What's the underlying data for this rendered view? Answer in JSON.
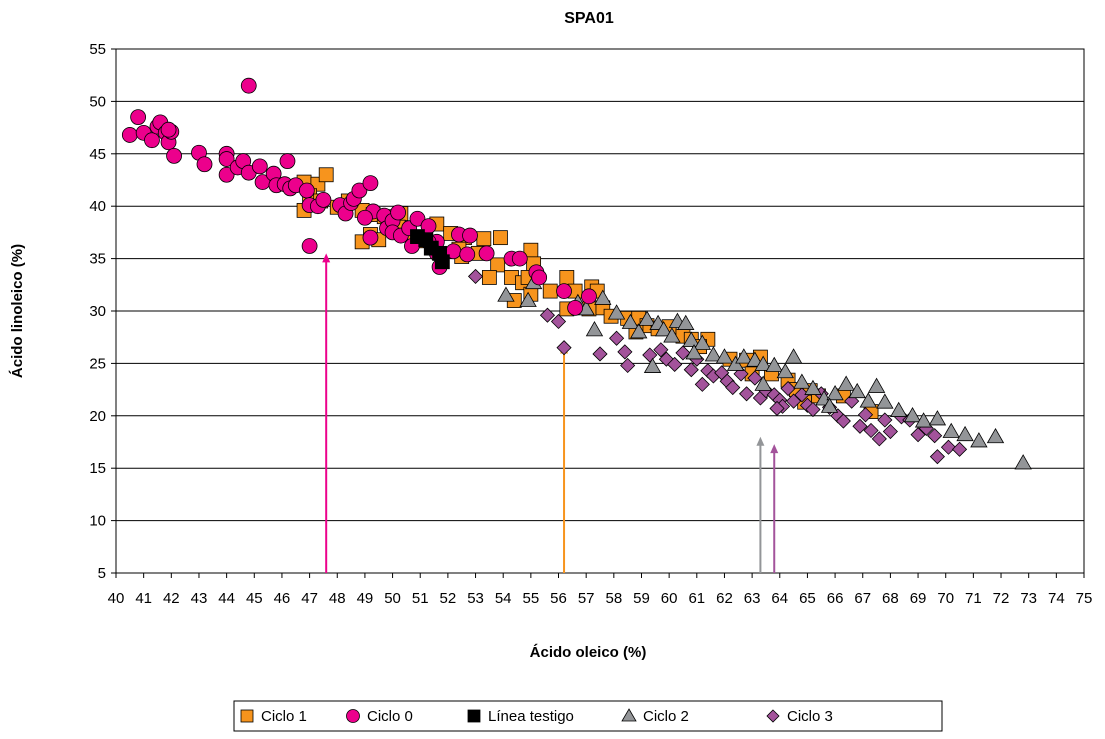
{
  "chart_data": {
    "type": "scatter",
    "title": "SPA01",
    "xlabel": "Ácido oleico (%)",
    "ylabel": "Ácido linoleico (%)",
    "xlim": [
      40,
      75
    ],
    "ylim": [
      5,
      55
    ],
    "xticks": [
      "40",
      "41",
      "42",
      "43",
      "44",
      "45",
      "46",
      "47",
      "48",
      "49",
      "50",
      "51",
      "52",
      "53",
      "54",
      "55",
      "56",
      "57",
      "58",
      "59",
      "60",
      "61",
      "62",
      "63",
      "64",
      "65",
      "66",
      "67",
      "68",
      "69",
      "70",
      "71",
      "72",
      "73",
      "74",
      "75"
    ],
    "yticks": [
      "5",
      "10",
      "15",
      "20",
      "25",
      "30",
      "35",
      "40",
      "45",
      "50",
      "55"
    ],
    "grid": "horizontal",
    "legend_position": "bottom",
    "series": [
      {
        "name": "Ciclo 1",
        "marker": "square",
        "color": "#F7941D",
        "points": [
          [
            46.8,
            42.3
          ],
          [
            47.3,
            42.1
          ],
          [
            47.6,
            43.0
          ],
          [
            47.0,
            41.0
          ],
          [
            46.8,
            39.6
          ],
          [
            47.4,
            40.5
          ],
          [
            48.0,
            39.9
          ],
          [
            48.4,
            40.5
          ],
          [
            48.9,
            39.6
          ],
          [
            49.3,
            39.2
          ],
          [
            49.7,
            39.0
          ],
          [
            50.3,
            39.3
          ],
          [
            50.2,
            38.0
          ],
          [
            49.2,
            37.3
          ],
          [
            48.9,
            36.6
          ],
          [
            49.5,
            36.8
          ],
          [
            50.8,
            37.0
          ],
          [
            51.2,
            36.7
          ],
          [
            51.6,
            38.3
          ],
          [
            52.1,
            37.4
          ],
          [
            52.6,
            37.0
          ],
          [
            53.3,
            36.9
          ],
          [
            53.1,
            35.5
          ],
          [
            52.5,
            35.2
          ],
          [
            53.8,
            34.4
          ],
          [
            53.5,
            33.2
          ],
          [
            54.3,
            33.2
          ],
          [
            54.7,
            32.7
          ],
          [
            55.0,
            35.8
          ],
          [
            55.1,
            34.5
          ],
          [
            54.9,
            33.2
          ],
          [
            55.0,
            31.6
          ],
          [
            54.4,
            31.0
          ],
          [
            55.7,
            31.9
          ],
          [
            56.3,
            33.2
          ],
          [
            56.6,
            31.9
          ],
          [
            57.2,
            32.3
          ],
          [
            57.4,
            31.9
          ],
          [
            57.6,
            30.3
          ],
          [
            57.1,
            30.2
          ],
          [
            57.9,
            29.5
          ],
          [
            58.5,
            29.3
          ],
          [
            58.9,
            29.3
          ],
          [
            59.2,
            28.6
          ],
          [
            58.8,
            28.0
          ],
          [
            59.6,
            28.3
          ],
          [
            60.0,
            28.5
          ],
          [
            60.5,
            27.6
          ],
          [
            60.8,
            27.3
          ],
          [
            61.4,
            27.3
          ],
          [
            61.1,
            26.6
          ],
          [
            62.2,
            25.4
          ],
          [
            62.8,
            25.3
          ],
          [
            63.3,
            25.6
          ],
          [
            63.0,
            24.0
          ],
          [
            63.7,
            24.0
          ],
          [
            64.3,
            23.4
          ],
          [
            64.6,
            22.5
          ],
          [
            65.1,
            22.4
          ],
          [
            64.9,
            21.3
          ],
          [
            65.4,
            21.9
          ],
          [
            66.3,
            21.9
          ],
          [
            67.3,
            20.4
          ],
          [
            56.3,
            30.2
          ],
          [
            53.9,
            37.0
          ],
          [
            52.4,
            35.9
          ]
        ]
      },
      {
        "name": "Ciclo 0",
        "marker": "circle",
        "color": "#EC008C",
        "points": [
          [
            40.5,
            46.8
          ],
          [
            40.8,
            48.5
          ],
          [
            41.0,
            47.0
          ],
          [
            41.3,
            46.3
          ],
          [
            41.5,
            47.6
          ],
          [
            41.6,
            48.0
          ],
          [
            41.8,
            47.0
          ],
          [
            41.9,
            46.1
          ],
          [
            42.0,
            47.1
          ],
          [
            41.9,
            47.3
          ],
          [
            42.1,
            44.8
          ],
          [
            43.0,
            45.1
          ],
          [
            43.2,
            44.0
          ],
          [
            44.0,
            45.0
          ],
          [
            44.0,
            44.5
          ],
          [
            44.0,
            43.0
          ],
          [
            44.4,
            43.7
          ],
          [
            44.6,
            44.3
          ],
          [
            44.8,
            51.5
          ],
          [
            44.8,
            43.2
          ],
          [
            45.2,
            43.8
          ],
          [
            45.3,
            42.3
          ],
          [
            45.7,
            43.1
          ],
          [
            45.8,
            42.0
          ],
          [
            46.1,
            42.1
          ],
          [
            46.2,
            44.3
          ],
          [
            46.3,
            41.7
          ],
          [
            46.5,
            42.0
          ],
          [
            46.9,
            41.5
          ],
          [
            47.0,
            40.1
          ],
          [
            47.3,
            40.0
          ],
          [
            47.5,
            40.6
          ],
          [
            47.0,
            36.2
          ],
          [
            48.1,
            40.1
          ],
          [
            48.3,
            39.3
          ],
          [
            48.5,
            40.3
          ],
          [
            48.6,
            40.7
          ],
          [
            48.8,
            41.5
          ],
          [
            49.2,
            42.2
          ],
          [
            49.3,
            39.5
          ],
          [
            49.0,
            38.9
          ],
          [
            49.2,
            37.0
          ],
          [
            49.7,
            39.1
          ],
          [
            49.8,
            37.9
          ],
          [
            50.0,
            38.6
          ],
          [
            50.2,
            39.4
          ],
          [
            50.0,
            37.5
          ],
          [
            50.3,
            37.2
          ],
          [
            50.6,
            37.9
          ],
          [
            50.9,
            38.8
          ],
          [
            50.7,
            36.2
          ],
          [
            51.3,
            38.1
          ],
          [
            51.6,
            36.6
          ],
          [
            51.6,
            35.5
          ],
          [
            51.7,
            34.2
          ],
          [
            52.2,
            35.7
          ],
          [
            52.4,
            37.3
          ],
          [
            52.7,
            35.4
          ],
          [
            52.8,
            37.2
          ],
          [
            53.4,
            35.5
          ],
          [
            54.3,
            35.0
          ],
          [
            54.6,
            35.0
          ],
          [
            55.2,
            33.7
          ],
          [
            55.3,
            33.2
          ],
          [
            56.2,
            31.9
          ],
          [
            56.6,
            30.3
          ],
          [
            57.1,
            31.4
          ],
          [
            51.3,
            36.6
          ]
        ]
      },
      {
        "name": "Línea testigo",
        "marker": "square",
        "color": "#000000",
        "points": [
          [
            50.9,
            37.1
          ],
          [
            51.2,
            36.8
          ],
          [
            51.4,
            36.0
          ],
          [
            51.7,
            35.5
          ],
          [
            51.8,
            34.7
          ]
        ]
      },
      {
        "name": "Ciclo 2",
        "marker": "triangle",
        "color": "#939598",
        "points": [
          [
            54.1,
            31.5
          ],
          [
            54.9,
            31.0
          ],
          [
            55.1,
            32.7
          ],
          [
            56.7,
            30.8
          ],
          [
            57.0,
            30.2
          ],
          [
            57.3,
            28.2
          ],
          [
            57.6,
            31.2
          ],
          [
            58.1,
            29.8
          ],
          [
            58.6,
            28.9
          ],
          [
            58.9,
            28.0
          ],
          [
            59.2,
            29.2
          ],
          [
            59.6,
            28.8
          ],
          [
            59.4,
            24.7
          ],
          [
            59.8,
            28.2
          ],
          [
            60.3,
            29.0
          ],
          [
            60.6,
            28.8
          ],
          [
            60.1,
            27.6
          ],
          [
            60.8,
            27.2
          ],
          [
            61.2,
            26.9
          ],
          [
            61.6,
            25.8
          ],
          [
            62.0,
            25.6
          ],
          [
            62.4,
            24.9
          ],
          [
            62.7,
            25.6
          ],
          [
            63.1,
            25.3
          ],
          [
            63.4,
            24.9
          ],
          [
            63.8,
            24.8
          ],
          [
            64.2,
            24.2
          ],
          [
            64.5,
            25.6
          ],
          [
            64.8,
            23.2
          ],
          [
            65.2,
            22.6
          ],
          [
            65.6,
            21.6
          ],
          [
            66.0,
            22.1
          ],
          [
            66.4,
            23.0
          ],
          [
            66.8,
            22.3
          ],
          [
            67.2,
            21.4
          ],
          [
            67.5,
            22.8
          ],
          [
            67.8,
            21.3
          ],
          [
            68.3,
            20.5
          ],
          [
            68.8,
            20.0
          ],
          [
            69.2,
            19.5
          ],
          [
            69.7,
            19.7
          ],
          [
            70.2,
            18.5
          ],
          [
            70.7,
            18.2
          ],
          [
            71.2,
            17.6
          ],
          [
            71.8,
            18.0
          ],
          [
            72.8,
            15.5
          ],
          [
            63.4,
            23.0
          ],
          [
            65.8,
            20.9
          ],
          [
            60.9,
            26.0
          ]
        ]
      },
      {
        "name": "Ciclo 3",
        "marker": "diamond",
        "color": "#A3539B",
        "points": [
          [
            53.0,
            33.3
          ],
          [
            55.6,
            29.6
          ],
          [
            56.0,
            29.0
          ],
          [
            57.5,
            25.9
          ],
          [
            58.1,
            27.4
          ],
          [
            58.4,
            26.1
          ],
          [
            58.5,
            24.8
          ],
          [
            59.3,
            25.8
          ],
          [
            59.7,
            26.3
          ],
          [
            59.9,
            25.4
          ],
          [
            60.2,
            24.9
          ],
          [
            60.5,
            26.0
          ],
          [
            60.8,
            24.4
          ],
          [
            61.0,
            25.4
          ],
          [
            61.4,
            24.3
          ],
          [
            61.6,
            23.8
          ],
          [
            61.9,
            24.1
          ],
          [
            62.1,
            23.3
          ],
          [
            62.3,
            22.7
          ],
          [
            62.6,
            24.0
          ],
          [
            62.8,
            22.1
          ],
          [
            63.1,
            23.6
          ],
          [
            63.3,
            21.7
          ],
          [
            63.5,
            22.4
          ],
          [
            63.8,
            22.0
          ],
          [
            64.0,
            21.5
          ],
          [
            64.1,
            20.9
          ],
          [
            64.3,
            22.6
          ],
          [
            64.5,
            21.4
          ],
          [
            64.8,
            22.0
          ],
          [
            65.0,
            21.0
          ],
          [
            65.2,
            20.6
          ],
          [
            65.5,
            22.1
          ],
          [
            65.8,
            20.8
          ],
          [
            66.1,
            20.0
          ],
          [
            66.3,
            19.5
          ],
          [
            66.6,
            21.4
          ],
          [
            66.9,
            19.0
          ],
          [
            67.1,
            20.1
          ],
          [
            67.3,
            18.6
          ],
          [
            67.6,
            17.8
          ],
          [
            67.8,
            19.6
          ],
          [
            68.0,
            18.5
          ],
          [
            68.4,
            19.9
          ],
          [
            68.7,
            19.6
          ],
          [
            69.0,
            18.2
          ],
          [
            69.3,
            18.8
          ],
          [
            69.6,
            18.1
          ],
          [
            69.7,
            16.1
          ],
          [
            70.1,
            17.0
          ],
          [
            70.5,
            16.8
          ],
          [
            56.2,
            26.5
          ],
          [
            61.2,
            23.0
          ],
          [
            63.9,
            20.7
          ]
        ]
      }
    ]
  },
  "annotations": {
    "arrows": [
      {
        "x": 47.6,
        "y_from": 5,
        "y_to": 35.5,
        "color": "#EC008C"
      },
      {
        "x": 56.2,
        "y_from": 5,
        "y_to": 26.8,
        "color": "#F7941D"
      },
      {
        "x": 63.3,
        "y_from": 5,
        "y_to": 18.0,
        "color": "#939598"
      },
      {
        "x": 63.8,
        "y_from": 5,
        "y_to": 17.3,
        "color": "#A3539B"
      }
    ]
  }
}
